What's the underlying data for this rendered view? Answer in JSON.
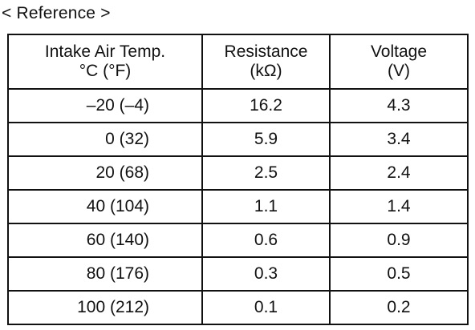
{
  "caption": "< Reference >",
  "table": {
    "headers": [
      {
        "line1": "Intake Air Temp.",
        "line2": "°C (°F)"
      },
      {
        "line1": "Resistance",
        "line2": "(kΩ)"
      },
      {
        "line1": "Voltage",
        "line2": "(V)"
      }
    ],
    "rows": [
      {
        "temp": "–20 (–4)",
        "resistance": "16.2",
        "voltage": "4.3"
      },
      {
        "temp": "0 (32)",
        "resistance": "5.9",
        "voltage": "3.4"
      },
      {
        "temp": "20 (68)",
        "resistance": "2.5",
        "voltage": "2.4"
      },
      {
        "temp": "40 (104)",
        "resistance": "1.1",
        "voltage": "1.4"
      },
      {
        "temp": "60 (140)",
        "resistance": "0.6",
        "voltage": "0.9"
      },
      {
        "temp": "80 (176)",
        "resistance": "0.3",
        "voltage": "0.5"
      },
      {
        "temp": "100 (212)",
        "resistance": "0.1",
        "voltage": "0.2"
      }
    ]
  }
}
